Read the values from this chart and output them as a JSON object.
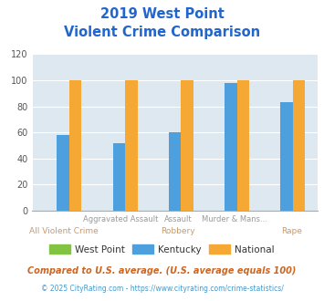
{
  "title_line1": "2019 West Point",
  "title_line2": "Violent Crime Comparison",
  "top_labels": [
    "",
    "Aggravated Assault",
    "Assault",
    "Murder & Mans...",
    ""
  ],
  "bottom_labels": [
    "All Violent Crime",
    "",
    "Robbery",
    "",
    "Rape"
  ],
  "west_point": [
    0,
    0,
    0,
    0,
    0
  ],
  "kentucky": [
    58,
    52,
    60,
    98,
    83
  ],
  "national": [
    100,
    100,
    100,
    100,
    100
  ],
  "colors": {
    "west_point": "#82c341",
    "kentucky": "#4d9fde",
    "national": "#f5a833"
  },
  "ylim": [
    0,
    120
  ],
  "yticks": [
    0,
    20,
    40,
    60,
    80,
    100,
    120
  ],
  "title_color": "#2266cc",
  "bg_color": "#dde8f0",
  "legend_labels": [
    "West Point",
    "Kentucky",
    "National"
  ],
  "footnote1": "Compared to U.S. average. (U.S. average equals 100)",
  "footnote2": "© 2025 CityRating.com - https://www.cityrating.com/crime-statistics/",
  "footnote1_color": "#cc6622",
  "footnote2_color": "#4499cc"
}
